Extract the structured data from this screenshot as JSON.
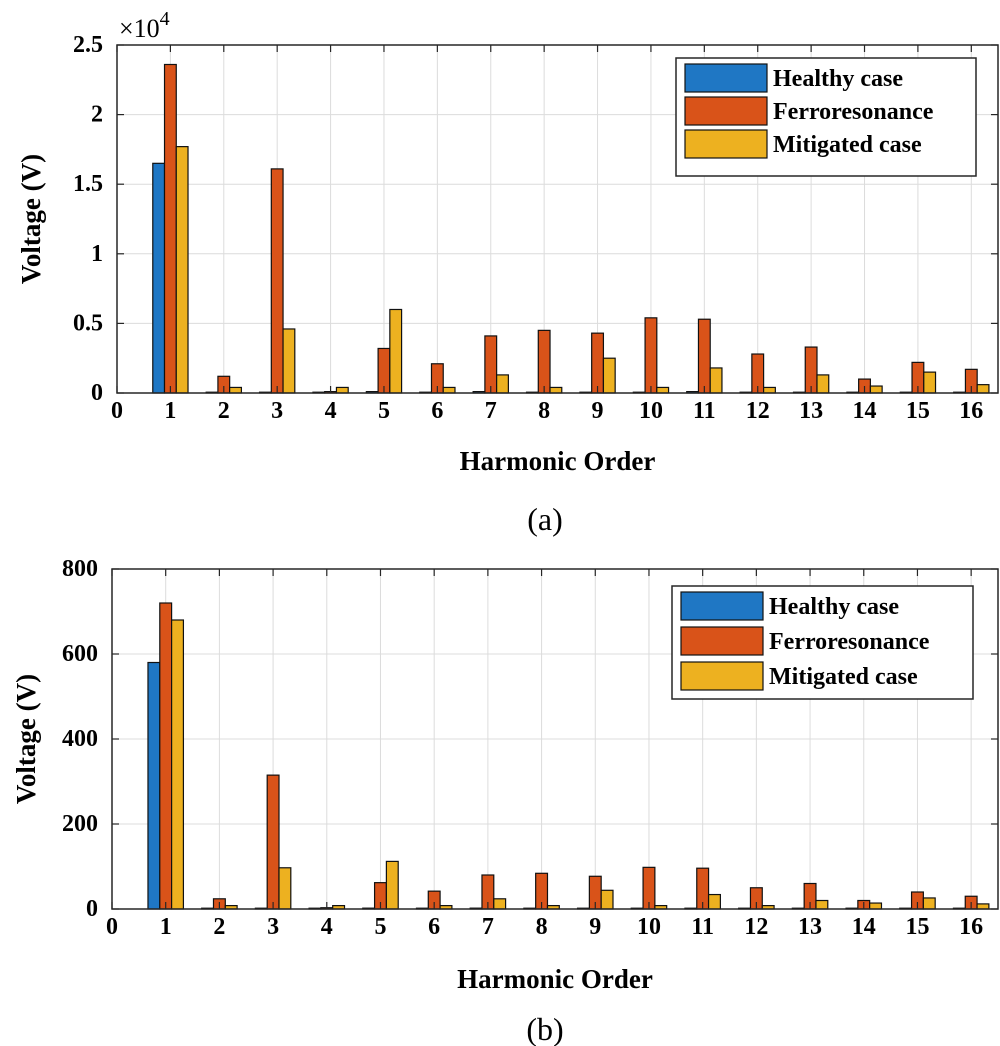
{
  "colors": {
    "healthy": "#1f77c4",
    "ferro": "#d95319",
    "mitigated": "#edb120"
  },
  "chart_data": [
    {
      "type": "bar",
      "caption": "(a)",
      "xlabel": "Harmonic Order",
      "ylabel": "Voltage (V)",
      "exponent_label": "×10",
      "exponent_power": "4",
      "x_ticks": [
        "0",
        "1",
        "2",
        "3",
        "4",
        "5",
        "6",
        "7",
        "8",
        "9",
        "10",
        "11",
        "12",
        "13",
        "14",
        "15",
        "16"
      ],
      "y_ticks": [
        "0",
        "0.5",
        "1",
        "1.5",
        "2",
        "2.5"
      ],
      "y_tick_values": [
        0,
        0.5,
        1,
        1.5,
        2,
        2.5
      ],
      "ylim": [
        0,
        2.5
      ],
      "xlim": [
        0,
        16.5
      ],
      "grid": true,
      "legend_position": "top-right",
      "categories": [
        1,
        2,
        3,
        4,
        5,
        6,
        7,
        8,
        9,
        10,
        11,
        12,
        13,
        14,
        15,
        16
      ],
      "series": [
        {
          "name": "Healthy case",
          "color_key": "healthy",
          "values": [
            1.65,
            0,
            0,
            0,
            0.01,
            0,
            0.01,
            0,
            0,
            0,
            0.01,
            0,
            0,
            0,
            0,
            0
          ]
        },
        {
          "name": "Ferroresonance",
          "color_key": "ferro",
          "values": [
            2.36,
            0.12,
            1.61,
            0.01,
            0.32,
            0.21,
            0.41,
            0.45,
            0.43,
            0.54,
            0.53,
            0.28,
            0.33,
            0.1,
            0.22,
            0.17
          ]
        },
        {
          "name": "Mitigated case",
          "color_key": "mitigated",
          "values": [
            1.77,
            0.04,
            0.46,
            0.04,
            0.6,
            0.04,
            0.13,
            0.04,
            0.25,
            0.04,
            0.18,
            0.04,
            0.13,
            0.05,
            0.15,
            0.06
          ]
        }
      ]
    },
    {
      "type": "bar",
      "caption": "(b)",
      "xlabel": "Harmonic Order",
      "ylabel": "Voltage (V)",
      "x_ticks": [
        "0",
        "1",
        "2",
        "3",
        "4",
        "5",
        "6",
        "7",
        "8",
        "9",
        "10",
        "11",
        "12",
        "13",
        "14",
        "15",
        "16"
      ],
      "y_ticks": [
        "0",
        "200",
        "400",
        "600",
        "800"
      ],
      "y_tick_values": [
        0,
        200,
        400,
        600,
        800
      ],
      "ylim": [
        0,
        800
      ],
      "xlim": [
        0,
        16.5
      ],
      "grid": true,
      "legend_position": "top-right",
      "categories": [
        1,
        2,
        3,
        4,
        5,
        6,
        7,
        8,
        9,
        10,
        11,
        12,
        13,
        14,
        15,
        16
      ],
      "series": [
        {
          "name": "Healthy case",
          "color_key": "healthy",
          "values": [
            580,
            0,
            1,
            1,
            2,
            0,
            2,
            0,
            1,
            1,
            1,
            0,
            1,
            0,
            0,
            0
          ]
        },
        {
          "name": "Ferroresonance",
          "color_key": "ferro",
          "values": [
            720,
            24,
            315,
            3,
            62,
            42,
            80,
            84,
            77,
            98,
            96,
            50,
            60,
            20,
            40,
            30
          ]
        },
        {
          "name": "Mitigated case",
          "color_key": "mitigated",
          "values": [
            680,
            8,
            97,
            8,
            112,
            8,
            24,
            8,
            44,
            8,
            34,
            8,
            20,
            14,
            26,
            12
          ]
        }
      ]
    }
  ]
}
